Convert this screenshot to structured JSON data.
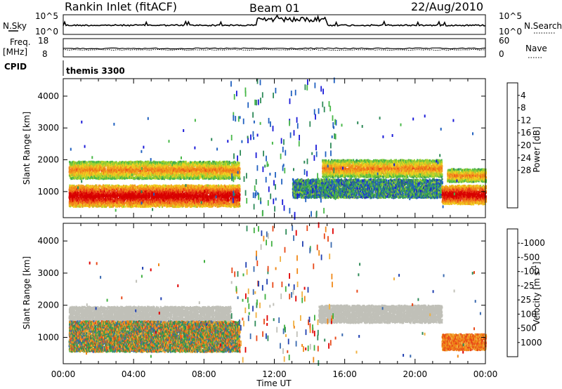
{
  "header": {
    "station": "Rankin Inlet (fitACF)",
    "beam": "Beam 01",
    "date": "22/Aug/2010"
  },
  "top_panels": {
    "nsky_label": "N.Sky",
    "nsky_ticks": [
      "10^5",
      "10^0"
    ],
    "nsearch_label": "N.Search",
    "nsearch_ticks": [
      "10^5",
      "10^0"
    ],
    "freq_label": "Freq.",
    "freq_unit": "[MHz]",
    "freq_ticks": [
      "18",
      "8"
    ],
    "nave_label": "Nave",
    "nave_ticks": [
      "60",
      "0"
    ],
    "cpid_label": "CPID",
    "cpid_value": "themis 3300"
  },
  "chart_data": [
    {
      "type": "heatmap",
      "title": "",
      "xlabel": "",
      "ylabel": "Slant Range [km]",
      "x_ticks": [
        "00:00",
        "04:00",
        "08:00",
        "12:00",
        "16:00",
        "20:00",
        "00:00"
      ],
      "y_ticks": [
        "1000",
        "2000",
        "3000",
        "4000"
      ],
      "xlim": [
        0,
        24
      ],
      "ylim": [
        180,
        4550
      ],
      "colorbar": {
        "label": "Power [dB]",
        "ticks": [
          "4",
          "8",
          "12",
          "16",
          "20",
          "24",
          "28"
        ],
        "colors": [
          "#1a1ad8",
          "#2060c0",
          "#2e8a58",
          "#48b848",
          "#a0d030",
          "#f0d020",
          "#f0a020",
          "#f07818",
          "#e83818",
          "#d80000"
        ]
      },
      "bands": [
        {
          "t": [
            0.3,
            10.0
          ],
          "r": [
            520,
            1200
          ],
          "level": "high"
        },
        {
          "t": [
            0.3,
            10.0
          ],
          "r": [
            1400,
            1950
          ],
          "level": "medium"
        },
        {
          "t": [
            14.7,
            21.5
          ],
          "r": [
            1450,
            2000
          ],
          "level": "medium"
        },
        {
          "t": [
            13.0,
            21.5
          ],
          "r": [
            800,
            1400
          ],
          "level": "low"
        },
        {
          "t": [
            21.5,
            24.0
          ],
          "r": [
            600,
            1200
          ],
          "level": "high"
        },
        {
          "t": [
            21.8,
            24.0
          ],
          "r": [
            1300,
            1700
          ],
          "level": "medium"
        }
      ]
    },
    {
      "type": "heatmap",
      "title": "",
      "xlabel": "Time UT",
      "ylabel": "Slant Range [km]",
      "x_ticks": [
        "00:00",
        "04:00",
        "08:00",
        "12:00",
        "16:00",
        "20:00",
        "00:00"
      ],
      "y_ticks": [
        "1000",
        "2000",
        "3000",
        "4000"
      ],
      "xlim": [
        0,
        24
      ],
      "ylim": [
        180,
        4550
      ],
      "colorbar": {
        "label": "Velocity [m s^-1]",
        "ticks": [
          "1000",
          "500",
          "100",
          "25",
          "-25",
          "-100",
          "-500",
          "-1000"
        ],
        "colors": [
          "#2040b0",
          "#3a6ab0",
          "#2e8a58",
          "#40b040",
          "#c0c0b8",
          "#f0b040",
          "#f08818",
          "#e84818",
          "#e00000"
        ]
      },
      "bands": [
        {
          "t": [
            0.3,
            9.5
          ],
          "r": [
            1500,
            1950
          ],
          "level": "ground"
        },
        {
          "t": [
            14.5,
            21.5
          ],
          "r": [
            1450,
            2000
          ],
          "level": "ground"
        },
        {
          "t": [
            0.3,
            10.0
          ],
          "r": [
            550,
            1500
          ],
          "level": "mixed"
        },
        {
          "t": [
            21.5,
            24.0
          ],
          "r": [
            600,
            1100
          ],
          "level": "negative"
        }
      ]
    }
  ]
}
